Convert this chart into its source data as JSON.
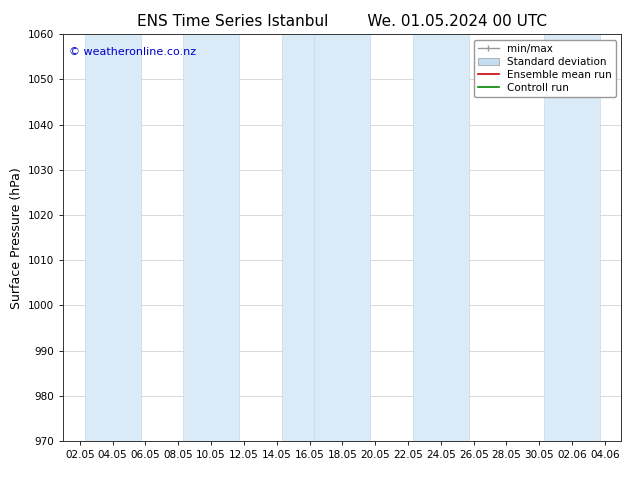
{
  "title_left": "ENS Time Series Istanbul",
  "title_right": "We. 01.05.2024 00 UTC",
  "ylabel": "Surface Pressure (hPa)",
  "ylim": [
    970,
    1060
  ],
  "yticks": [
    970,
    980,
    990,
    1000,
    1010,
    1020,
    1030,
    1040,
    1050,
    1060
  ],
  "xtick_labels": [
    "02.05",
    "04.05",
    "06.05",
    "08.05",
    "10.05",
    "12.05",
    "14.05",
    "16.05",
    "18.05",
    "20.05",
    "22.05",
    "24.05",
    "26.05",
    "28.05",
    "30.05",
    "02.06",
    "04.06"
  ],
  "num_xticks": 17,
  "shaded_band_indices": [
    1,
    4,
    7,
    8,
    11,
    15
  ],
  "band_color": "#daeaf7",
  "band_edge_color": "#b8d4ec",
  "background_color": "#ffffff",
  "watermark_text": "© weatheronline.co.nz",
  "watermark_color": "#0000cc",
  "legend_labels": [
    "min/max",
    "Standard deviation",
    "Ensemble mean run",
    "Controll run"
  ],
  "legend_colors": [
    "#999999",
    "#c5ddf0",
    "#cc0000",
    "#008800"
  ],
  "title_fontsize": 11,
  "tick_fontsize": 7.5,
  "ylabel_fontsize": 9,
  "legend_fontsize": 7.5
}
